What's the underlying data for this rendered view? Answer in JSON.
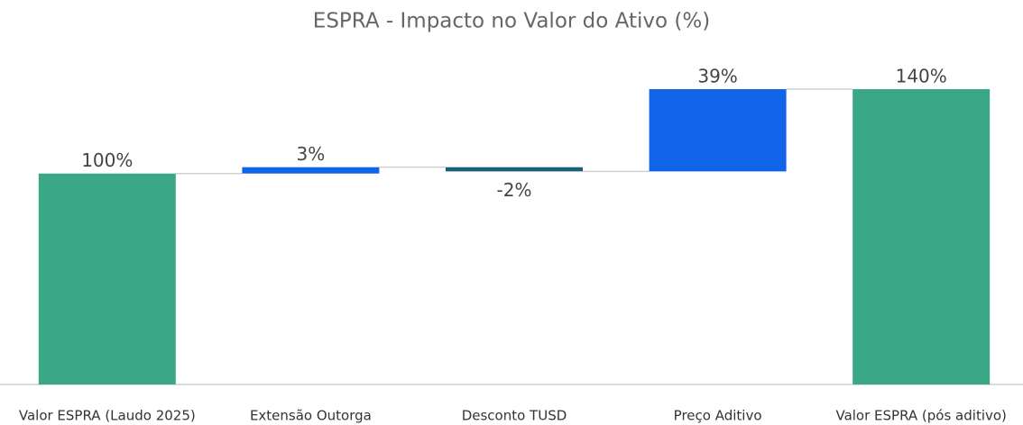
{
  "chart_data": {
    "type": "waterfall",
    "title": "ESPRA - Impacto no Valor do Ativo (%)",
    "categories": [
      "Valor ESPRA (Laudo 2025)",
      "Extensão Outorga",
      "Desconto TUSD",
      "Preço Aditivo",
      "Valor ESPRA (pós aditivo)"
    ],
    "values": [
      100,
      3,
      -2,
      39,
      140
    ],
    "value_labels": [
      "100%",
      "3%",
      "-2%",
      "39%",
      "140%"
    ],
    "totals": [
      true,
      false,
      false,
      false,
      true
    ],
    "colors": [
      "#3aa887",
      "#1164e8",
      "#1a5f7a",
      "#1164e8",
      "#3aa887"
    ]
  }
}
